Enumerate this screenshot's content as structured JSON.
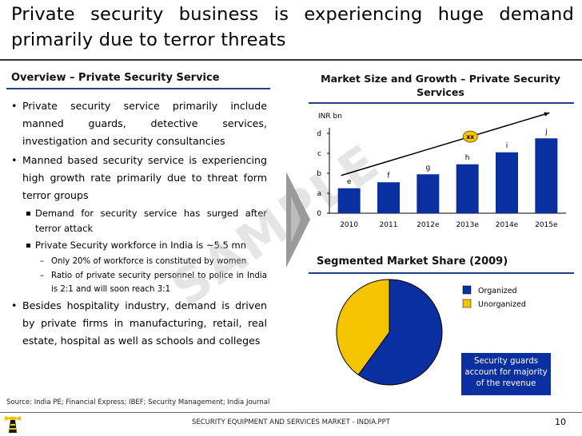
{
  "title": "Private security business is experiencing huge demand primarily due to terror threats",
  "overview": {
    "heading": "Overview – Private Security Service",
    "bullets": [
      {
        "level": 1,
        "text": "Private security service primarily include manned guards, detective services, investigation and security consultancies"
      },
      {
        "level": 1,
        "text": "Manned based security service is experiencing high growth rate primarily due to threat form terror groups"
      },
      {
        "level": 2,
        "text": "Demand for security service has surged after terror attack"
      },
      {
        "level": 2,
        "text": "Private Security workforce in India is ~5.5 mn"
      },
      {
        "level": 3,
        "text": "Only 20%  of workforce is constituted by women"
      },
      {
        "level": 3,
        "text": "Ratio of private security personnel to police in India is 2:1 and will soon reach 3:1"
      },
      {
        "level": 1,
        "text": "Besides hospitality industry, demand is driven by private firms in manufacturing, retail, real estate, hospital as well as schools and colleges"
      }
    ]
  },
  "watermark": "SAMPLE",
  "source": "Source: India PE; Financial Express; IBEF; Security Management; India Journal",
  "footer": "SECURITY EQUIPMENT AND SERVICES MARKET - INDIA.PPT",
  "page_number": "10",
  "market_chart_title": "Market Size and Growth – Private Security Services",
  "pie_chart_title": "Segmented Market Share (2009)",
  "callout": "Security guards account for majority of the revenue",
  "colors": {
    "accent": "#1f3f8f",
    "bar": "#0a2fa0",
    "unorganized": "#f5c400",
    "badge": "#f5c400"
  },
  "chart_data": [
    {
      "type": "bar",
      "title": "Market Size and Growth – Private Security Services",
      "ylabel": "INR bn",
      "categories": [
        "2010",
        "2011",
        "2012e",
        "2013e",
        "2014e",
        "2015e"
      ],
      "values": [
        1.25,
        1.55,
        1.95,
        2.45,
        3.05,
        3.75
      ],
      "data_labels": [
        "e",
        "f",
        "g",
        "h",
        "i",
        "j"
      ],
      "yticks": [
        "0",
        "a",
        "b",
        "c",
        "d"
      ],
      "ylim": [
        0,
        4
      ],
      "trend_annotation": "xx",
      "grid": false
    },
    {
      "type": "pie",
      "title": "Segmented Market Share (2009)",
      "labels": [
        "Organized",
        "Unorganized"
      ],
      "values": [
        60,
        40
      ],
      "legend": "right"
    }
  ]
}
